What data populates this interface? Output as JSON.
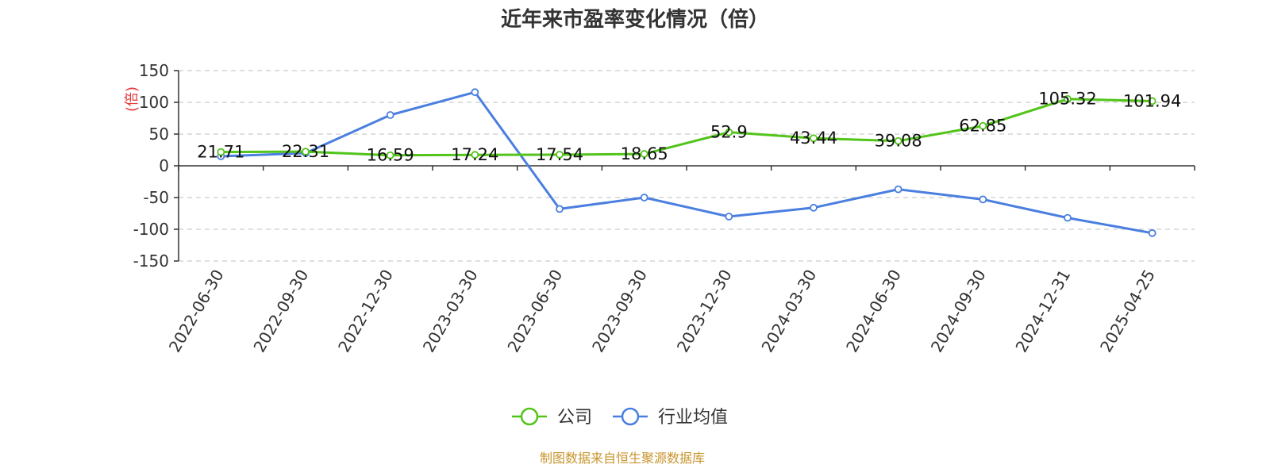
{
  "chart_data": {
    "type": "line",
    "title": "近年来市盈率变化情况（倍）",
    "ylabel": "(倍)",
    "xlabel": "",
    "ylim": [
      -150,
      150
    ],
    "yticks": [
      150,
      100,
      50,
      0,
      -50,
      -100,
      -150
    ],
    "grid": true,
    "legend_position": "bottom-center",
    "categories": [
      "2022-06-30",
      "2022-09-30",
      "2022-12-30",
      "2023-03-30",
      "2023-06-30",
      "2023-09-30",
      "2023-12-30",
      "2024-03-30",
      "2024-06-30",
      "2024-09-30",
      "2024-12-31",
      "2025-04-25"
    ],
    "series": [
      {
        "name": "公司",
        "color": "#52c41a",
        "values": [
          21.71,
          22.31,
          16.59,
          17.24,
          17.54,
          18.65,
          52.9,
          43.44,
          39.08,
          62.85,
          105.32,
          101.94
        ],
        "labels": [
          "21.71",
          "22.31",
          "16.59",
          "17.24",
          "17.54",
          "18.65",
          "52.9",
          "43.44",
          "39.08",
          "62.85",
          "105.32",
          "101.94"
        ]
      },
      {
        "name": "行业均值",
        "color": "#4a7fe0",
        "values": [
          15,
          20,
          80,
          116,
          -68,
          -50,
          -80,
          -66,
          -37,
          -53,
          -82,
          -106
        ]
      }
    ],
    "source": "制图数据来自恒生聚源数据库"
  }
}
